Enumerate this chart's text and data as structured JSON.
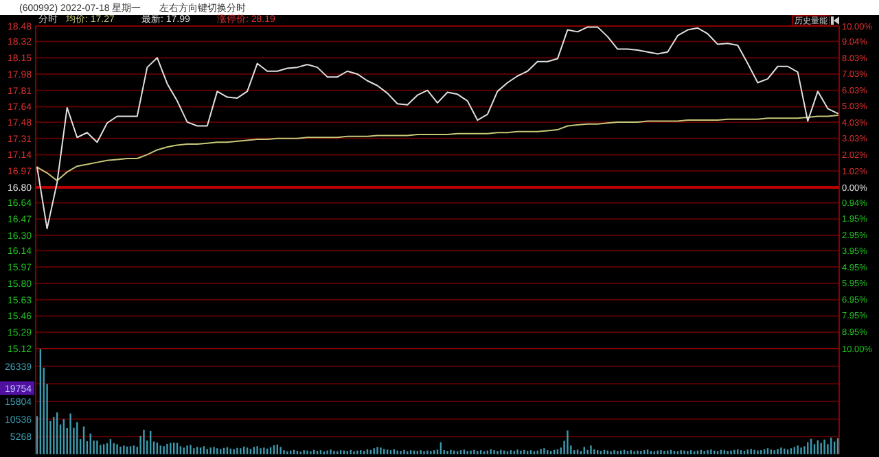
{
  "chart_data": [
    {
      "type": "line",
      "title": "(600992) 2022-07-18 星期一",
      "subtitle": "左右方向键切换分时",
      "annotations": [
        "分时",
        "涨停价: 28.19",
        "历史量能"
      ],
      "grid": "y",
      "ylim": [
        15.12,
        18.48
      ],
      "categories": [
        null,
        null,
        null,
        null,
        null,
        null,
        null,
        null,
        null,
        null,
        null,
        null,
        null,
        null,
        null,
        null,
        null,
        null,
        null,
        null,
        null,
        null,
        null,
        null,
        null,
        null,
        null,
        null,
        null,
        null,
        null,
        null,
        null,
        null,
        null,
        null,
        null,
        null,
        null,
        null,
        null,
        null,
        null,
        null,
        null,
        null,
        null,
        null,
        null,
        null,
        null,
        null,
        null,
        null,
        null,
        null,
        null,
        null,
        null,
        null,
        null,
        null,
        null,
        null,
        null,
        null,
        null,
        null,
        null,
        null,
        null,
        null,
        null,
        null,
        null,
        null,
        null,
        null,
        null,
        null,
        null
      ],
      "yticks": [
        18.48,
        18.32,
        18.15,
        17.98,
        17.81,
        17.64,
        17.48,
        17.31,
        17.14,
        16.97,
        {
          "value": 16.8,
          "label": "16.80"
        },
        16.64,
        16.47,
        {
          "value": 16.3,
          "label": "16.30"
        },
        16.14,
        15.97,
        {
          "value": 15.8,
          "label": "15.80"
        },
        15.63,
        15.46,
        15.29,
        15.12
      ],
      "y2lim": [
        -10,
        10
      ],
      "y2ticks": [
        {
          "value": 10,
          "label": "10.00%"
        },
        {
          "value": 9.04,
          "label": "9.04%"
        },
        {
          "value": 8.03,
          "label": "8.03%"
        },
        {
          "value": 7.03,
          "label": "7.03%"
        },
        {
          "value": 6.03,
          "label": "6.03%"
        },
        {
          "value": 5.03,
          "label": "5.03%"
        },
        {
          "value": 4.03,
          "label": "4.03%"
        },
        {
          "value": 3.03,
          "label": "3.03%"
        },
        {
          "value": 2.02,
          "label": "2.02%"
        },
        {
          "value": 1.02,
          "label": "1.02%"
        },
        {
          "value": 0,
          "label": "0.00%"
        },
        {
          "value": -0.94,
          "label": "0.94%"
        },
        {
          "value": -1.95,
          "label": "1.95%"
        },
        {
          "value": -2.95,
          "label": "2.95%"
        },
        {
          "value": -3.95,
          "label": "3.95%"
        },
        {
          "value": -4.95,
          "label": "4.95%"
        },
        {
          "value": -5.95,
          "label": "5.95%"
        },
        {
          "value": -6.95,
          "label": "6.95%"
        },
        {
          "value": -7.95,
          "label": "7.95%"
        },
        {
          "value": -8.95,
          "label": "8.95%"
        },
        {
          "value": -10,
          "label": "10.00%"
        }
      ],
      "ref_lines": [
        {
          "axis": "y",
          "value": 16.8,
          "color": "#c00000"
        }
      ],
      "series": [
        {
          "name": "均价: 17.27",
          "color": "#c8c878",
          "values": [
            17.01,
            16.95,
            16.87,
            16.96,
            17.02,
            17.04,
            17.06,
            17.08,
            17.09,
            17.1,
            17.1,
            17.14,
            17.19,
            17.22,
            17.24,
            17.25,
            17.25,
            17.26,
            17.27,
            17.27,
            17.28,
            17.29,
            17.3,
            17.3,
            17.31,
            17.31,
            17.31,
            17.32,
            17.32,
            17.32,
            17.32,
            17.33,
            17.33,
            17.33,
            17.34,
            17.34,
            17.34,
            17.34,
            17.35,
            17.35,
            17.35,
            17.35,
            17.36,
            17.36,
            17.36,
            17.36,
            17.37,
            17.37,
            17.38,
            17.38,
            17.38,
            17.39,
            17.4,
            17.44,
            17.45,
            17.46,
            17.46,
            17.47,
            17.48,
            17.48,
            17.48,
            17.49,
            17.49,
            17.49,
            17.49,
            17.5,
            17.5,
            17.5,
            17.5,
            17.51,
            17.51,
            17.51,
            17.51,
            17.52,
            17.52,
            17.52,
            17.52,
            17.53,
            17.54,
            17.54,
            17.55
          ]
        },
        {
          "name": "最新: 17.99",
          "color": "#e0e0e0",
          "values": [
            17.01,
            16.37,
            16.85,
            17.63,
            17.32,
            17.37,
            17.27,
            17.47,
            17.54,
            17.54,
            17.54,
            18.05,
            18.15,
            17.88,
            17.7,
            17.48,
            17.44,
            17.44,
            17.8,
            17.74,
            17.73,
            17.8,
            18.09,
            18.01,
            18.01,
            18.04,
            18.05,
            18.08,
            18.05,
            17.95,
            17.95,
            18.01,
            17.98,
            17.91,
            17.86,
            17.78,
            17.67,
            17.66,
            17.76,
            17.81,
            17.68,
            17.79,
            17.77,
            17.7,
            17.5,
            17.56,
            17.8,
            17.89,
            17.96,
            18.01,
            18.11,
            18.11,
            18.14,
            18.44,
            18.42,
            18.47,
            18.47,
            18.37,
            18.24,
            18.24,
            18.23,
            18.21,
            18.19,
            18.21,
            18.38,
            18.44,
            18.46,
            18.4,
            18.29,
            18.3,
            18.28,
            18.09,
            17.89,
            17.93,
            18.06,
            18.06,
            18,
            17.49,
            17.8,
            17.62,
            17.57
          ]
        }
      ]
    },
    {
      "type": "bar",
      "color": "#3c9cb0",
      "grid": "y",
      "ylim": [
        0,
        31600
      ],
      "yticks": [
        5268,
        10536,
        15804,
        {
          "value": 21071,
          "label": null
        },
        26339
      ],
      "annotations": [
        {
          "text": "19754",
          "y": 19754
        }
      ],
      "categories": [
        null,
        null,
        null,
        null,
        null,
        null,
        null,
        null,
        null,
        null,
        null,
        null,
        null,
        null,
        null,
        null,
        null,
        null,
        null,
        null,
        null,
        null,
        null,
        null,
        null,
        null,
        null,
        null,
        null,
        null,
        null,
        null,
        null,
        null,
        null,
        null,
        null,
        null,
        null,
        null,
        null,
        null,
        null,
        null,
        null,
        null,
        null,
        null,
        null,
        null,
        null,
        null,
        null,
        null,
        null,
        null,
        null,
        null,
        null,
        null,
        null,
        null,
        null,
        null,
        null,
        null,
        null,
        null,
        null,
        null,
        null,
        null,
        null,
        null,
        null,
        null,
        null,
        null,
        null,
        null,
        null,
        null,
        null,
        null,
        null,
        null,
        null,
        null,
        null,
        null,
        null,
        null,
        null,
        null,
        null,
        null,
        null,
        null,
        null,
        null,
        null,
        null,
        null,
        null,
        null,
        null,
        null,
        null,
        null,
        null,
        null,
        null,
        null,
        null,
        null,
        null,
        null,
        null,
        null,
        null,
        null,
        null,
        null,
        null,
        null,
        null,
        null,
        null,
        null,
        null,
        null,
        null,
        null,
        null,
        null,
        null,
        null,
        null,
        null,
        null,
        null,
        null,
        null,
        null,
        null,
        null,
        null,
        null,
        null,
        null,
        null,
        null,
        null,
        null,
        null,
        null,
        null,
        null,
        null,
        null,
        null,
        null,
        null,
        null,
        null,
        null,
        null,
        null,
        null,
        null,
        null,
        null,
        null,
        null,
        null,
        null,
        null,
        null,
        null,
        null,
        null,
        null,
        null,
        null,
        null,
        null,
        null,
        null,
        null,
        null,
        null,
        null,
        null,
        null,
        null,
        null,
        null,
        null,
        null,
        null,
        null,
        null,
        null,
        null,
        null,
        null,
        null,
        null,
        null,
        null,
        null,
        null,
        null,
        null,
        null,
        null,
        null,
        null,
        null,
        null,
        null,
        null,
        null,
        null,
        null,
        null,
        null,
        null,
        null,
        null,
        null,
        null,
        null,
        null,
        null,
        null,
        null,
        null,
        null,
        null,
        null
      ],
      "values": [
        11400,
        31400,
        25900,
        21000,
        10000,
        11100,
        12500,
        8900,
        10500,
        7800,
        12200,
        7900,
        9600,
        4500,
        8300,
        3900,
        6200,
        4100,
        4100,
        2800,
        3000,
        3300,
        4500,
        3300,
        3000,
        2300,
        2600,
        2300,
        2400,
        2600,
        2200,
        5500,
        7300,
        4100,
        7000,
        3800,
        3500,
        2600,
        2400,
        3100,
        3400,
        3500,
        3400,
        2400,
        2000,
        2600,
        2800,
        1800,
        2200,
        2000,
        2400,
        1600,
        2000,
        2200,
        1800,
        1600,
        1900,
        2100,
        1700,
        1500,
        1900,
        1800,
        2300,
        2000,
        1600,
        2200,
        2400,
        1800,
        2000,
        1700,
        2100,
        2700,
        2900,
        2200,
        1200,
        900,
        1100,
        1300,
        1000,
        800,
        1200,
        1100,
        900,
        1300,
        1000,
        1200,
        800,
        1100,
        1400,
        1000,
        900,
        1200,
        1100,
        1000,
        1300,
        900,
        1100,
        1200,
        1000,
        1500,
        1300,
        1800,
        2200,
        2000,
        1600,
        1400,
        1200,
        1500,
        1100,
        1000,
        1300,
        900,
        1200,
        1100,
        1000,
        1200,
        900,
        1100,
        1000,
        1200,
        1400,
        3600,
        1200,
        1000,
        1300,
        1100,
        900,
        1200,
        1400,
        1000,
        1100,
        1300,
        1000,
        1200,
        900,
        1100,
        1500,
        1200,
        1000,
        1300,
        1100,
        900,
        1200,
        1000,
        1400,
        1100,
        1300,
        1000,
        1200,
        900,
        1100,
        1600,
        1800,
        1200,
        1000,
        1300,
        1500,
        2000,
        4000,
        7100,
        2600,
        1200,
        1400,
        1000,
        2200,
        1300,
        2600,
        1500,
        1200,
        1000,
        1300,
        1100,
        900,
        1200,
        1000,
        1100,
        1300,
        1000,
        1200,
        900,
        1100,
        1000,
        1200,
        1400,
        1000,
        900,
        1100,
        1200,
        1000,
        1100,
        1300,
        1000,
        900,
        1200,
        1100,
        1000,
        1200,
        900,
        1100,
        1300,
        1000,
        1200,
        1400,
        1100,
        1000,
        1300,
        1200,
        1000,
        1100,
        1300,
        1500,
        1200,
        1000,
        1400,
        1600,
        1300,
        1100,
        1200,
        1500,
        1800,
        1400,
        1200,
        1600,
        2000,
        1700,
        1400,
        1800,
        2200,
        2600,
        2000,
        2400,
        3600,
        4600,
        3000,
        4200,
        3400,
        4400,
        3000,
        5000,
        3800,
        4800
      ]
    }
  ]
}
